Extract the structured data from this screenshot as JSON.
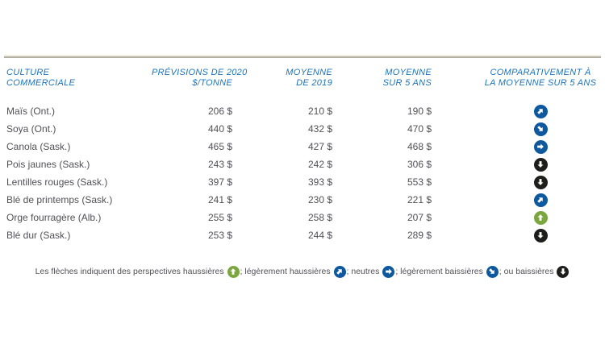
{
  "table": {
    "headers": {
      "crop": {
        "line1": "CULTURE",
        "line2": "COMMERCIALE"
      },
      "f2020": {
        "line1": "PRÉVISIONS DE 2020",
        "line2": "$/TONNE"
      },
      "avg2019": {
        "line1": "MOYENNE",
        "line2": "DE 2019"
      },
      "avg5yr": {
        "line1": "MOYENNE",
        "line2": "SUR 5 ANS"
      },
      "comp": {
        "line1": "COMPARATIVEMENT À",
        "line2": "LA MOYENNE SUR 5 ANS"
      }
    },
    "rows": [
      {
        "crop": "Maïs (Ont.)",
        "f2020": "206 $",
        "avg2019": "210 $",
        "avg5yr": "190 $",
        "trend": "slight_up"
      },
      {
        "crop": "Soya (Ont.)",
        "f2020": "440 $",
        "avg2019": "432 $",
        "avg5yr": "470 $",
        "trend": "slight_down"
      },
      {
        "crop": "Canola (Sask.)",
        "f2020": "465 $",
        "avg2019": "427 $",
        "avg5yr": "468 $",
        "trend": "neutral"
      },
      {
        "crop": "Pois jaunes (Sask.)",
        "f2020": "243 $",
        "avg2019": "242 $",
        "avg5yr": "306 $",
        "trend": "down"
      },
      {
        "crop": "Lentilles rouges (Sask.)",
        "f2020": "397 $",
        "avg2019": "393 $",
        "avg5yr": "553 $",
        "trend": "down"
      },
      {
        "crop": "Blé de printemps (Sask.)",
        "f2020": "241 $",
        "avg2019": "230 $",
        "avg5yr": "221 $",
        "trend": "slight_up"
      },
      {
        "crop": "Orge fourragère (Alb.)",
        "f2020": "255 $",
        "avg2019": "258 $",
        "avg5yr": "207 $",
        "trend": "up"
      },
      {
        "crop": "Blé dur (Sask.)",
        "f2020": "253 $",
        "avg2019": "244 $",
        "avg5yr": "289 $",
        "trend": "down"
      }
    ]
  },
  "legend": {
    "segments": [
      {
        "text": "Les flèches indiquent des perspectives haussières ",
        "icon": "up"
      },
      {
        "text": "; légèrement haussières ",
        "icon": "slight_up"
      },
      {
        "text": "; neutres ",
        "icon": "neutral"
      },
      {
        "text": "; légèrement baissières ",
        "icon": "slight_down"
      },
      {
        "text": "; ou baissières ",
        "icon": "down"
      }
    ]
  },
  "colors": {
    "header_text": "#1e73b8",
    "body_text": "#515157",
    "top_rule": "#b2aea1",
    "arrow_up": "#7aa63d",
    "arrow_slight_up": "#0e589e",
    "arrow_neutral": "#0e589e",
    "arrow_slight_down": "#0e589e",
    "arrow_down": "#1e1e1c"
  },
  "chart_data": {
    "type": "table",
    "title": "",
    "columns": [
      "Culture commerciale",
      "Prévisions de 2020 $/tonne",
      "Moyenne de 2019",
      "Moyenne sur 5 ans",
      "Comparativement à la moyenne sur 5 ans"
    ],
    "rows": [
      [
        "Maïs (Ont.)",
        206,
        210,
        190,
        "légèrement haussière"
      ],
      [
        "Soya (Ont.)",
        440,
        432,
        470,
        "légèrement baissière"
      ],
      [
        "Canola (Sask.)",
        465,
        427,
        468,
        "neutre"
      ],
      [
        "Pois jaunes (Sask.)",
        243,
        242,
        306,
        "baissière"
      ],
      [
        "Lentilles rouges (Sask.)",
        397,
        393,
        553,
        "baissière"
      ],
      [
        "Blé de printemps (Sask.)",
        241,
        230,
        221,
        "légèrement haussière"
      ],
      [
        "Orge fourragère (Alb.)",
        255,
        258,
        207,
        "haussière"
      ],
      [
        "Blé dur (Sask.)",
        253,
        244,
        289,
        "baissière"
      ]
    ],
    "units": "$/tonne"
  }
}
